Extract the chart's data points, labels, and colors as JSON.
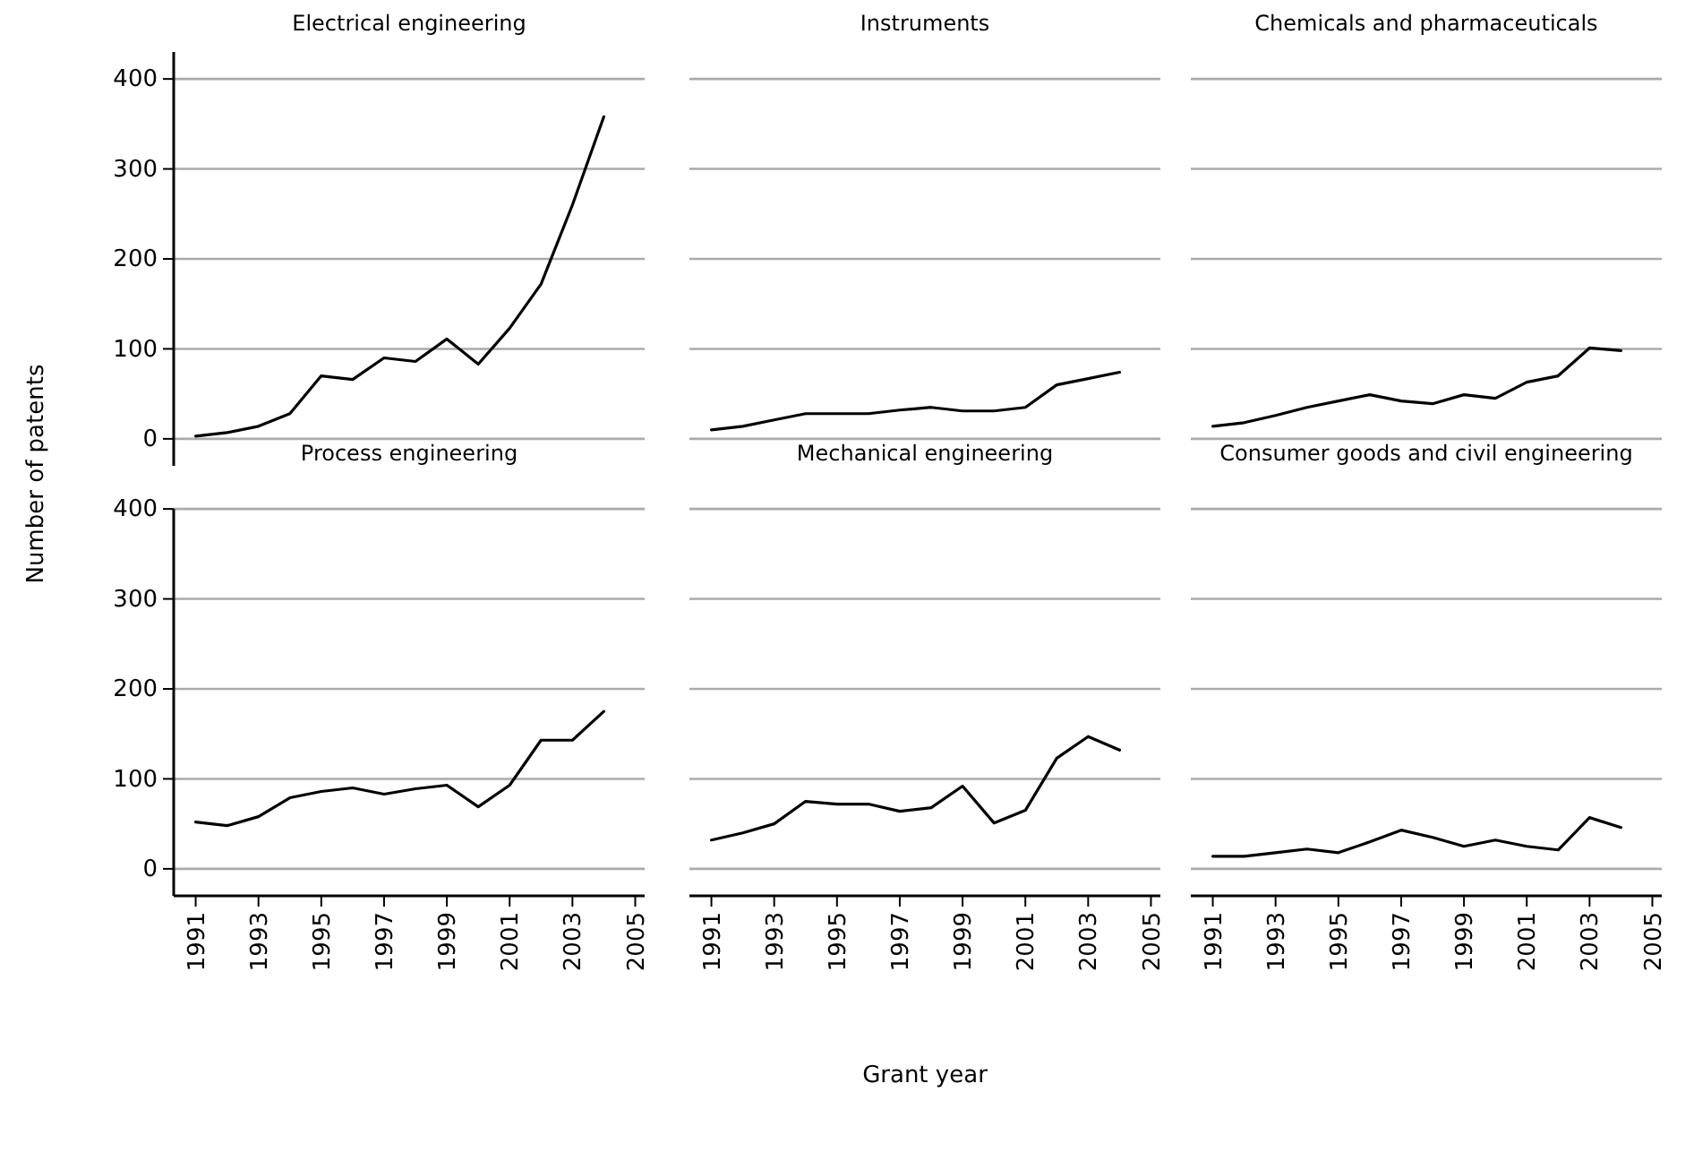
{
  "chart_data": [
    {
      "type": "line",
      "title": "Electrical engineering",
      "ylabel": "Number of patents",
      "x": [
        1991,
        1992,
        1993,
        1994,
        1995,
        1996,
        1997,
        1998,
        1999,
        2000,
        2001,
        2002,
        2003,
        2004
      ],
      "series": [
        {
          "color": "#000000",
          "values": [
            3,
            7,
            14,
            28,
            70,
            66,
            90,
            86,
            111,
            83,
            123,
            172,
            260,
            358
          ]
        }
      ],
      "xlim": [
        1990.3,
        2005.3
      ],
      "ylim": [
        -30,
        430
      ],
      "yticks": [
        0,
        100,
        200,
        300,
        400
      ],
      "grid": "y",
      "tick_labels": "y"
    },
    {
      "type": "line",
      "title": "Instruments",
      "x": [
        1991,
        1992,
        1993,
        1994,
        1995,
        1996,
        1997,
        1998,
        1999,
        2000,
        2001,
        2002,
        2003,
        2004
      ],
      "series": [
        {
          "color": "#000000",
          "values": [
            10,
            14,
            21,
            28,
            28,
            28,
            32,
            35,
            31,
            31,
            35,
            60,
            67,
            74
          ]
        }
      ],
      "xlim": [
        1990.3,
        2005.3
      ],
      "ylim": [
        0,
        400
      ],
      "yticks": [
        0,
        100,
        200,
        300,
        400
      ],
      "grid": "y",
      "tick_labels": false
    },
    {
      "type": "line",
      "title": "Chemicals and pharmaceuticals",
      "x": [
        1991,
        1992,
        1993,
        1994,
        1995,
        1996,
        1997,
        1998,
        1999,
        2000,
        2001,
        2002,
        2003,
        2004
      ],
      "series": [
        {
          "color": "#000000",
          "values": [
            14,
            18,
            26,
            35,
            42,
            49,
            42,
            39,
            49,
            45,
            63,
            70,
            101,
            98
          ]
        }
      ],
      "xlim": [
        1990.3,
        2005.3
      ],
      "ylim": [
        0,
        400
      ],
      "yticks": [
        0,
        100,
        200,
        300,
        400
      ],
      "grid": "y",
      "tick_labels": false
    },
    {
      "type": "line",
      "title": "Process engineering",
      "x": [
        1991,
        1992,
        1993,
        1994,
        1995,
        1996,
        1997,
        1998,
        1999,
        2000,
        2001,
        2002,
        2003,
        2004
      ],
      "series": [
        {
          "color": "#000000",
          "values": [
            52,
            48,
            58,
            79,
            86,
            90,
            83,
            89,
            93,
            69,
            93,
            143,
            143,
            175
          ]
        }
      ],
      "xlim": [
        1990.3,
        2005.3
      ],
      "xticks": [
        1991,
        1993,
        1995,
        1997,
        1999,
        2001,
        2003,
        2005
      ],
      "ylim": [
        -30,
        400
      ],
      "yticks": [
        0,
        100,
        200,
        300,
        400
      ],
      "grid": "y"
    },
    {
      "type": "line",
      "title": "Mechanical engineering",
      "xlabel": "Grant year",
      "x": [
        1991,
        1992,
        1993,
        1994,
        1995,
        1996,
        1997,
        1998,
        1999,
        2000,
        2001,
        2002,
        2003,
        2004
      ],
      "series": [
        {
          "color": "#000000",
          "values": [
            32,
            40,
            50,
            75,
            72,
            72,
            64,
            68,
            92,
            51,
            65,
            123,
            147,
            132
          ]
        }
      ],
      "xlim": [
        1990.3,
        2005.3
      ],
      "xticks": [
        1991,
        1993,
        1995,
        1997,
        1999,
        2001,
        2003,
        2005
      ],
      "ylim": [
        -30,
        400
      ],
      "yticks": [
        0,
        100,
        200,
        300,
        400
      ],
      "grid": "y",
      "tick_labels": "x"
    },
    {
      "type": "line",
      "title": "Consumer goods and civil engineering",
      "x": [
        1991,
        1992,
        1993,
        1994,
        1995,
        1996,
        1997,
        1998,
        1999,
        2000,
        2001,
        2002,
        2003,
        2004
      ],
      "series": [
        {
          "color": "#000000",
          "values": [
            14,
            14,
            18,
            22,
            18,
            30,
            43,
            35,
            25,
            32,
            25,
            21,
            57,
            46
          ]
        }
      ],
      "xlim": [
        1990.3,
        2005.3
      ],
      "xticks": [
        1991,
        1993,
        1995,
        1997,
        1999,
        2001,
        2003,
        2005
      ],
      "ylim": [
        -30,
        400
      ],
      "yticks": [
        0,
        100,
        200,
        300,
        400
      ],
      "grid": "y",
      "tick_labels": "x"
    }
  ]
}
